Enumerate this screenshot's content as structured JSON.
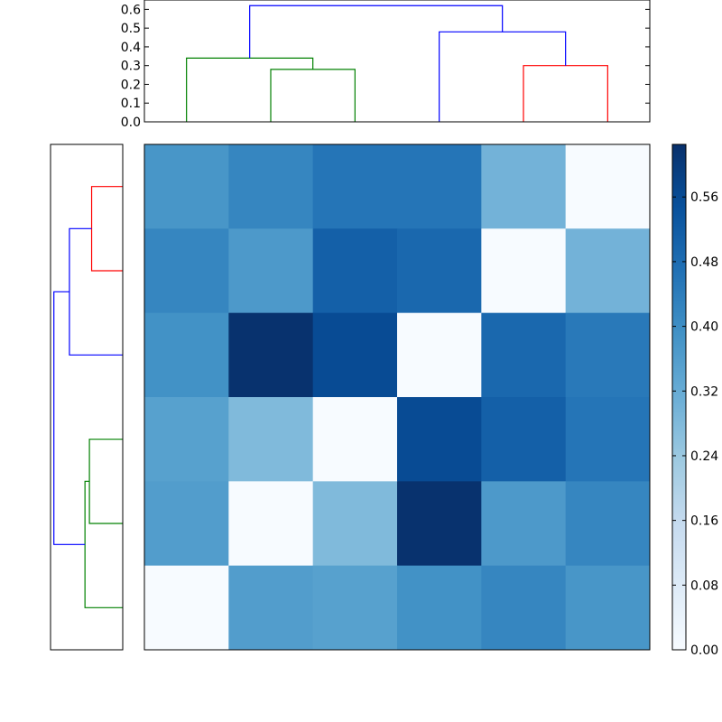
{
  "chart_data": {
    "type": "heatmap",
    "title": "",
    "xlabel": "",
    "ylabel": "",
    "rows": 6,
    "cols": 6,
    "values": [
      [
        0.38,
        0.42,
        0.46,
        0.46,
        0.3,
        0.0
      ],
      [
        0.42,
        0.37,
        0.51,
        0.49,
        0.0,
        0.3
      ],
      [
        0.39,
        0.62,
        0.56,
        0.0,
        0.49,
        0.45
      ],
      [
        0.35,
        0.28,
        0.0,
        0.56,
        0.51,
        0.46
      ],
      [
        0.36,
        0.0,
        0.28,
        0.62,
        0.37,
        0.42
      ],
      [
        0.0,
        0.36,
        0.35,
        0.39,
        0.42,
        0.38
      ]
    ],
    "colorbar": {
      "min": 0.0,
      "max": 0.625,
      "ticks": [
        "0.00",
        "0.08",
        "0.16",
        "0.24",
        "0.32",
        "0.40",
        "0.48",
        "0.56"
      ],
      "cmap": "Blues"
    },
    "dendrogram_top": {
      "ylim": [
        0.0,
        0.65
      ],
      "yticks": [
        "0.0",
        "0.1",
        "0.2",
        "0.3",
        "0.4",
        "0.5",
        "0.6"
      ],
      "links": [
        {
          "left": 2,
          "right": 3,
          "height": 0.28,
          "color": "#008000"
        },
        {
          "left": 1,
          "right": 2.5,
          "height": 0.34,
          "color": "#008000"
        },
        {
          "left": 5,
          "right": 6,
          "height": 0.3,
          "color": "#ff0000"
        },
        {
          "left": 4,
          "right": 5.5,
          "height": 0.48,
          "color": "#0000ff"
        },
        {
          "left": 1.75,
          "right": 4.75,
          "height": 0.62,
          "color": "#0000ff"
        }
      ]
    },
    "dendrogram_left": {
      "links": [
        {
          "a": 2,
          "b": 3,
          "height": 0.28,
          "color": "#ff0000"
        },
        {
          "a": 2.5,
          "b": 4,
          "height": 0.48,
          "color": "#0000ff"
        },
        {
          "a": 5,
          "b": 6,
          "height": 0.3,
          "color": "#008000"
        },
        {
          "a": 5.5,
          "b": 7,
          "height": 0.34,
          "color": "#008000"
        },
        {
          "a": 3.25,
          "b": 6.25,
          "height": 0.62,
          "color": "#0000ff"
        }
      ],
      "xmax": 0.65
    }
  }
}
